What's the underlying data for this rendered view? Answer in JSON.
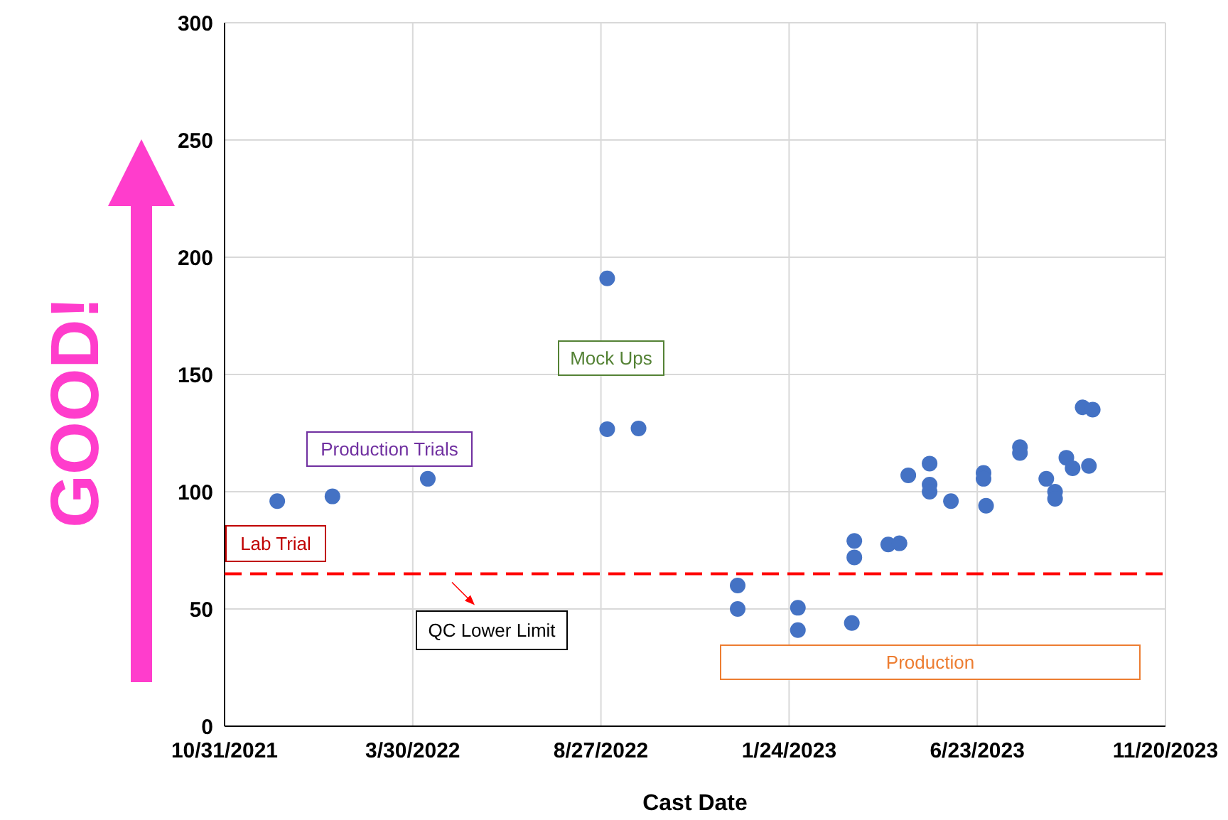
{
  "chart_data": {
    "type": "scatter",
    "xlabel": "Cast Date",
    "x": [
      "2021-12-12",
      "2022-01-25",
      "2022-04-11",
      "2022-09-01",
      "2022-09-01",
      "2022-09-26",
      "2022-12-14",
      "2022-12-14",
      "2023-01-31",
      "2023-01-31",
      "2023-03-15",
      "2023-03-17",
      "2023-03-17",
      "2023-04-13",
      "2023-04-22",
      "2023-04-29",
      "2023-05-16",
      "2023-05-16",
      "2023-05-16",
      "2023-06-02",
      "2023-06-28",
      "2023-06-28",
      "2023-06-30",
      "2023-07-27",
      "2023-07-27",
      "2023-08-17",
      "2023-08-24",
      "2023-08-24",
      "2023-09-02",
      "2023-09-07",
      "2023-09-15",
      "2023-09-23",
      "2023-09-20"
    ],
    "values": [
      96,
      98,
      105.5,
      191,
      126.7,
      127,
      60,
      50,
      50.5,
      41,
      44,
      79,
      72,
      77.5,
      78,
      107,
      112,
      103,
      100,
      96,
      108,
      105.5,
      94,
      119,
      116.5,
      105.5,
      100,
      97,
      114.5,
      110,
      136,
      135,
      111
    ],
    "color": "#4472c4",
    "marker": "circle",
    "xlim": [
      "2021-10-31",
      "2023-11-20"
    ],
    "xticks": [
      {
        "value": "2021-10-31",
        "label": "10/31/2021"
      },
      {
        "value": "2022-03-30",
        "label": "3/30/2022"
      },
      {
        "value": "2022-08-27",
        "label": "8/27/2022"
      },
      {
        "value": "2023-01-24",
        "label": "1/24/2023"
      },
      {
        "value": "2023-06-23",
        "label": "6/23/2023"
      },
      {
        "value": "2023-11-20",
        "label": "11/20/2023"
      }
    ],
    "ylim": [
      0,
      300
    ],
    "yticks": [
      0,
      50,
      100,
      150,
      200,
      250,
      300
    ],
    "grid": true,
    "ref_lines": [
      {
        "axis": "y",
        "value": 65,
        "label": "QC Lower Limit",
        "color": "#ff0000",
        "line_style": "dashed"
      }
    ],
    "annotations": [
      "Lab Trial",
      "Production Trials",
      "Mock Ups",
      "Production",
      "GOOD!"
    ]
  }
}
